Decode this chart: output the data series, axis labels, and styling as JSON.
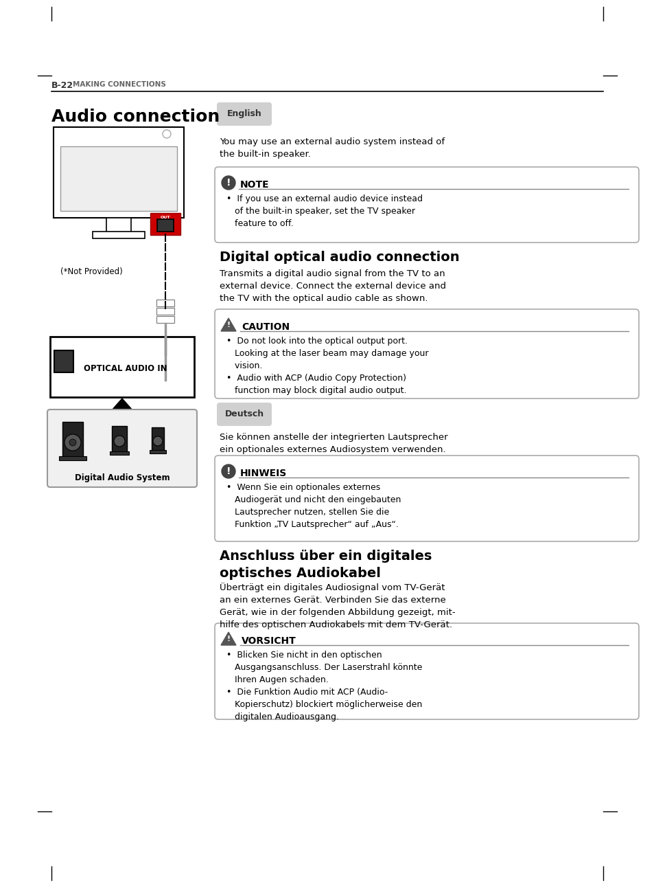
{
  "page_bg": "#ffffff",
  "border_color": "#000000",
  "header_line_color": "#000000",
  "section_label": "B-22",
  "section_title": "MAKING CONNECTIONS",
  "title_audio": "Audio connection",
  "lang_badge_en": "English",
  "lang_badge_de": "Deutsch",
  "english_intro": "You may use an external audio system instead of\nthe built-in speaker.",
  "note_title": "NOTE",
  "note_text": "•  If you use an external audio device instead\n   of the built-in speaker, set the TV speaker\n   feature to off.",
  "section2_title": "Digital optical audio connection",
  "section2_intro": "Transmits a digital audio signal from the TV to an\nexternal device. Connect the external device and\nthe TV with the optical audio cable as shown.",
  "caution_title": "CAUTION",
  "caution_text": "•  Do not look into the optical output port.\n   Looking at the laser beam may damage your\n   vision.\n•  Audio with ACP (Audio Copy Protection)\n   function may block digital audio output.",
  "deutsch_intro": "Sie können anstelle der integrierten Lautsprecher\nein optionales externes Audiosystem verwenden.",
  "hinweis_title": "HINWEIS",
  "hinweis_text": "•  Wenn Sie ein optionales externes\n   Audiogerät und nicht den eingebauten\n   Lautsprecher nutzen, stellen Sie die\n   Funktion „TV Lautsprecher“ auf „Aus“.",
  "section3_title": "Anschluss über ein digitales\noptisches Audiokabel",
  "section3_intro": "Überträgt ein digitales Audiosignal vom TV-Gerät\nan ein externes Gerät. Verbinden Sie das externe\nGerät, wie in der folgenden Abbildung gezeigt, mit-\nhilfe des optischen Audiokabels mit dem TV-Gerät.",
  "vorsicht_title": "VORSICHT",
  "vorsicht_text": "•  Blicken Sie nicht in den optischen\n   Ausgangsanschluss. Der Laserstrahl könnte\n   Ihren Augen schaden.\n•  Die Funktion Audio mit ACP (Audio-\n   Kopierschutz) blockiert möglicherweise den\n   digitalen Audioausgang.",
  "diagram_label_not_provided": "(*Not Provided)",
  "diagram_label_optical": "OPTICAL AUDIO IN",
  "diagram_label_digital_audio": "Digital Audio System",
  "badge_bg": "#d0d0d0",
  "note_border": "#888888",
  "caution_border": "#888888",
  "box_fill": "#f8f8f8"
}
